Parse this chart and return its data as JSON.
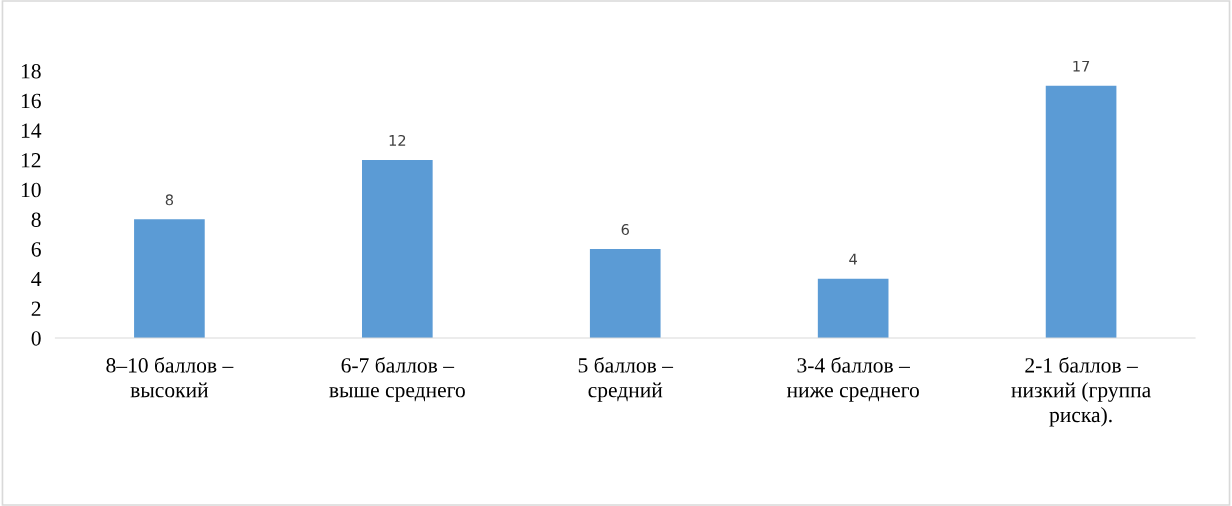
{
  "chart_data": {
    "type": "bar",
    "categories": [
      "8–10 баллов –\nвысокий",
      "6-7 баллов –\nвыше среднего",
      "5 баллов –\nсредний",
      "3-4 баллов –\nниже среднего",
      "2-1 баллов –\nнизкий (группа\nриска)."
    ],
    "values": [
      8,
      12,
      6,
      4,
      17
    ],
    "color": "#5b9bd5",
    "ylim": [
      0,
      18
    ],
    "yticks": [
      0,
      2,
      4,
      6,
      8,
      10,
      12,
      14,
      16,
      18
    ],
    "grid": false,
    "legend": false,
    "data_labels": true
  }
}
